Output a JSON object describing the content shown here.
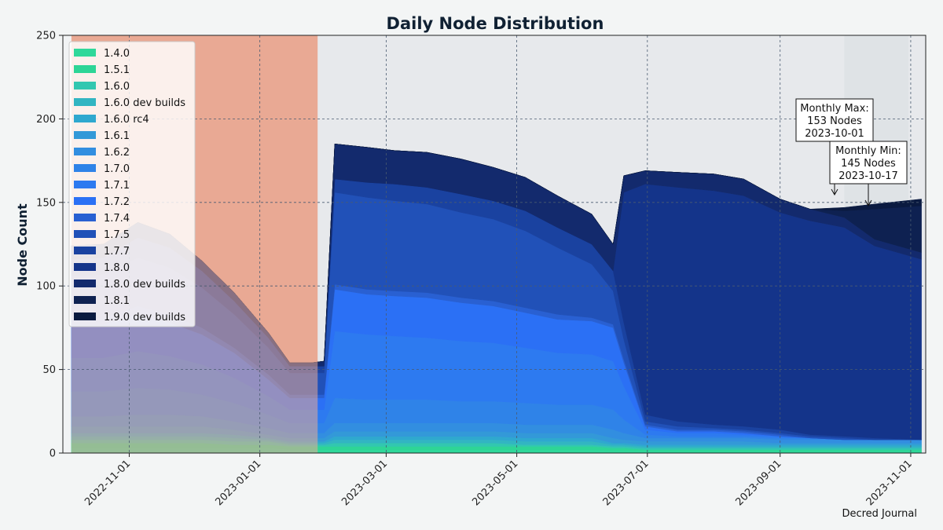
{
  "chart_data": {
    "type": "area",
    "stacked": true,
    "title": "Daily Node Distribution",
    "xlabel": "",
    "ylabel": "Node Count",
    "ylim": [
      0,
      250
    ],
    "yticks": [
      0,
      50,
      100,
      150,
      200,
      250
    ],
    "xlim": [
      "2022-10-01",
      "2023-11-08"
    ],
    "xticks": [
      "2022-11-01",
      "2023-01-01",
      "2023-03-01",
      "2023-05-01",
      "2023-07-01",
      "2023-09-01",
      "2023-11-01"
    ],
    "grid": true,
    "legend_position": "top-left",
    "dates": [
      "2022-10-05",
      "2022-10-20",
      "2022-11-05",
      "2022-11-20",
      "2022-12-05",
      "2022-12-20",
      "2023-01-05",
      "2023-01-15",
      "2023-01-25",
      "2023-01-31",
      "2023-02-05",
      "2023-02-20",
      "2023-03-05",
      "2023-03-20",
      "2023-04-05",
      "2023-04-20",
      "2023-05-05",
      "2023-05-20",
      "2023-06-05",
      "2023-06-15",
      "2023-06-20",
      "2023-06-30",
      "2023-07-15",
      "2023-08-01",
      "2023-08-15",
      "2023-09-01",
      "2023-09-15",
      "2023-10-01",
      "2023-10-15",
      "2023-11-06"
    ],
    "series": [
      {
        "name": "1.4.0",
        "color": "#2fd89a",
        "values": [
          3,
          3,
          3,
          3,
          3,
          3,
          3,
          2,
          2,
          2,
          2,
          2,
          2,
          2,
          2,
          2,
          2,
          2,
          2,
          1,
          1,
          1,
          1,
          1,
          1,
          1,
          1,
          1,
          1,
          1
        ]
      },
      {
        "name": "1.5.1",
        "color": "#2ed596",
        "values": [
          3,
          3,
          3,
          3,
          3,
          2,
          2,
          2,
          2,
          2,
          2,
          2,
          2,
          2,
          2,
          2,
          2,
          2,
          2,
          2,
          2,
          1,
          1,
          1,
          1,
          1,
          1,
          1,
          1,
          1
        ]
      },
      {
        "name": "1.6.0",
        "color": "#32c7b0",
        "values": [
          2,
          2,
          2,
          2,
          2,
          2,
          2,
          1,
          1,
          1,
          2,
          2,
          2,
          2,
          2,
          2,
          1,
          1,
          1,
          1,
          1,
          1,
          1,
          1,
          1,
          1,
          1,
          1,
          1,
          1
        ]
      },
      {
        "name": "1.6.0 dev builds",
        "color": "#32b5c2",
        "values": [
          2,
          2,
          2,
          2,
          2,
          2,
          1,
          1,
          1,
          1,
          2,
          2,
          2,
          2,
          2,
          2,
          2,
          2,
          2,
          1,
          1,
          1,
          1,
          1,
          1,
          1,
          1,
          1,
          1,
          1
        ]
      },
      {
        "name": "1.6.0 rc4",
        "color": "#2fa8cf",
        "values": [
          2,
          2,
          2,
          2,
          2,
          2,
          1,
          1,
          1,
          1,
          2,
          2,
          2,
          2,
          2,
          2,
          2,
          2,
          2,
          1,
          1,
          1,
          1,
          1,
          1,
          1,
          1,
          1,
          1,
          1
        ]
      },
      {
        "name": "1.6.1",
        "color": "#3399d8",
        "values": [
          4,
          4,
          4,
          4,
          4,
          3,
          2,
          2,
          2,
          2,
          3,
          3,
          3,
          3,
          3,
          3,
          3,
          3,
          3,
          3,
          2,
          2,
          2,
          2,
          2,
          1,
          1,
          1,
          1,
          1
        ]
      },
      {
        "name": "1.6.2",
        "color": "#328ee0",
        "values": [
          6,
          6,
          7,
          7,
          6,
          5,
          4,
          3,
          3,
          3,
          5,
          5,
          5,
          5,
          5,
          5,
          5,
          5,
          5,
          5,
          4,
          2,
          2,
          2,
          2,
          2,
          2,
          2,
          2,
          2
        ]
      },
      {
        "name": "1.7.0",
        "color": "#2f83e8",
        "values": [
          15,
          15,
          16,
          15,
          13,
          11,
          8,
          6,
          6,
          6,
          15,
          14,
          14,
          14,
          13,
          13,
          13,
          12,
          12,
          12,
          8,
          2,
          1,
          1,
          1,
          1,
          1,
          0,
          0,
          0
        ]
      },
      {
        "name": "1.7.1",
        "color": "#2d7af0",
        "values": [
          20,
          20,
          22,
          20,
          18,
          15,
          11,
          8,
          8,
          8,
          40,
          39,
          38,
          37,
          36,
          35,
          33,
          31,
          30,
          29,
          20,
          3,
          2,
          2,
          1,
          1,
          0,
          0,
          0,
          0
        ]
      },
      {
        "name": "1.7.2",
        "color": "#2b70f5",
        "values": [
          20,
          20,
          22,
          20,
          18,
          15,
          10,
          7,
          7,
          7,
          25,
          24,
          24,
          24,
          23,
          22,
          21,
          20,
          20,
          20,
          14,
          2,
          1,
          1,
          1,
          0,
          0,
          0,
          0,
          0
        ]
      },
      {
        "name": "1.7.4",
        "color": "#2960d2",
        "values": [
          4,
          4,
          5,
          5,
          4,
          3,
          3,
          2,
          2,
          2,
          3,
          3,
          3,
          3,
          3,
          3,
          3,
          3,
          2,
          2,
          2,
          1,
          1,
          1,
          1,
          1,
          0,
          0,
          0,
          0
        ]
      },
      {
        "name": "1.7.5",
        "color": "#2151b8",
        "values": [
          25,
          26,
          29,
          28,
          24,
          20,
          16,
          13,
          13,
          13,
          55,
          55,
          54,
          53,
          51,
          49,
          46,
          40,
          32,
          20,
          12,
          2,
          2,
          1,
          1,
          1,
          1,
          1,
          0,
          0
        ]
      },
      {
        "name": "1.7.7",
        "color": "#1a42a0",
        "values": [
          10,
          10,
          12,
          12,
          10,
          8,
          6,
          4,
          4,
          4,
          8,
          9,
          10,
          10,
          11,
          11,
          12,
          12,
          12,
          12,
          10,
          4,
          3,
          2,
          2,
          2,
          1,
          1,
          1,
          0
        ]
      },
      {
        "name": "1.8.0",
        "color": "#14348a",
        "values": [
          0,
          0,
          0,
          0,
          0,
          0,
          0,
          0,
          0,
          0,
          0,
          0,
          0,
          0,
          0,
          0,
          0,
          0,
          0,
          0,
          78,
          138,
          140,
          140,
          138,
          130,
          128,
          125,
          115,
          108
        ]
      },
      {
        "name": "1.8.0 dev builds",
        "color": "#132a6d",
        "values": [
          8,
          8,
          9,
          8,
          6,
          5,
          3,
          2,
          2,
          3,
          21,
          21,
          20,
          21,
          21,
          20,
          20,
          19,
          18,
          16,
          10,
          8,
          9,
          10,
          10,
          8,
          7,
          6,
          4,
          4
        ]
      },
      {
        "name": "1.8.1",
        "color": "#0e2151",
        "values": [
          0,
          0,
          0,
          0,
          0,
          0,
          0,
          0,
          0,
          0,
          0,
          0,
          0,
          0,
          0,
          0,
          0,
          0,
          0,
          0,
          0,
          0,
          0,
          0,
          0,
          0,
          0,
          4,
          18,
          28
        ]
      },
      {
        "name": "1.9.0 dev builds",
        "color": "#0a1a40",
        "values": [
          0,
          0,
          0,
          0,
          0,
          0,
          0,
          0,
          0,
          0,
          0,
          0,
          0,
          0,
          0,
          0,
          0,
          0,
          0,
          0,
          0,
          0,
          0,
          0,
          0,
          0,
          0,
          2,
          3,
          4
        ]
      }
    ],
    "shaded_regions": [
      {
        "start": "2022-10-05",
        "end": "2023-01-28",
        "color": "#e9a994"
      },
      {
        "start": "2023-01-28",
        "end": "2023-11-08",
        "color": "#e7e9ec"
      },
      {
        "start": "2023-10-01",
        "end": "2023-10-31",
        "color": "#dfe3e6"
      }
    ],
    "annotations": [
      {
        "lines": [
          "Monthly Max:",
          "153 Nodes",
          "2023-10-01"
        ],
        "date": "2023-10-01",
        "value": 153
      },
      {
        "lines": [
          "Monthly Min:",
          "145 Nodes",
          "2023-10-17"
        ],
        "date": "2023-10-17",
        "value": 145
      }
    ],
    "credit": "Decred Journal"
  }
}
